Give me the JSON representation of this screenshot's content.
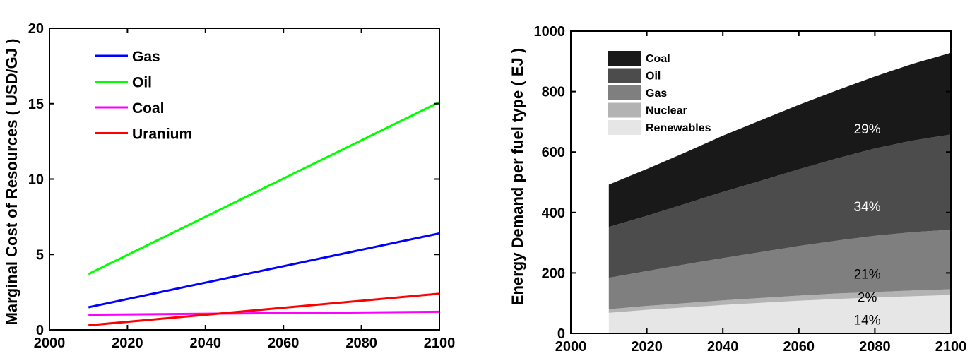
{
  "chart_data": [
    {
      "type": "line",
      "title": "",
      "xlabel": "",
      "ylabel": "Marginal Cost of Resources ( USD/GJ )",
      "xlim": [
        2000,
        2100
      ],
      "ylim": [
        0,
        20
      ],
      "xticks": [
        "2000",
        "2020",
        "2040",
        "2060",
        "2080",
        "2100"
      ],
      "yticks": [
        "0",
        "5",
        "10",
        "15",
        "20"
      ],
      "grid": false,
      "legend_position": "top-left",
      "x": [
        2010,
        2100
      ],
      "series": [
        {
          "name": "Gas",
          "color": "#0000ff",
          "values": [
            1.5,
            6.4
          ]
        },
        {
          "name": "Oil",
          "color": "#00ff00",
          "values": [
            3.7,
            15.1
          ]
        },
        {
          "name": "Coal",
          "color": "#ff00ff",
          "values": [
            1.0,
            1.2
          ]
        },
        {
          "name": "Uranium",
          "color": "#ff0000",
          "values": [
            0.3,
            2.4
          ]
        }
      ]
    },
    {
      "type": "area",
      "stacked": true,
      "title": "",
      "xlabel": "",
      "ylabel": "Energy Demand per fuel type ( EJ )",
      "xlim": [
        2000,
        2100
      ],
      "ylim": [
        0,
        1000
      ],
      "xticks": [
        "2000",
        "2020",
        "2040",
        "2060",
        "2080",
        "2100"
      ],
      "yticks": [
        "0",
        "200",
        "400",
        "600",
        "800",
        "1000"
      ],
      "grid": false,
      "legend_position": "top-left",
      "x": [
        2010,
        2020,
        2030,
        2040,
        2050,
        2060,
        2070,
        2080,
        2090,
        2100
      ],
      "series": [
        {
          "name": "Renewables",
          "color": "#e6e6e6",
          "values": [
            68,
            78,
            86,
            94,
            101,
            108,
            114,
            119,
            123,
            127
          ]
        },
        {
          "name": "Nuclear",
          "color": "#b3b3b3",
          "values": [
            12,
            13,
            14,
            15,
            16,
            17,
            18,
            18,
            19,
            19
          ]
        },
        {
          "name": "Gas",
          "color": "#7f7f7f",
          "values": [
            104,
            115,
            128,
            140,
            152,
            164,
            175,
            186,
            193,
            197
          ]
        },
        {
          "name": "Oil",
          "color": "#4c4c4c",
          "values": [
            168,
            183,
            200,
            219,
            236,
            254,
            272,
            289,
            303,
            315
          ]
        },
        {
          "name": "Coal",
          "color": "#191919",
          "values": [
            140,
            155,
            170,
            186,
            200,
            213,
            225,
            238,
            254,
            270
          ]
        }
      ],
      "annotations": [
        {
          "text": "14%",
          "x": 2078,
          "y": 45,
          "color": "#000000"
        },
        {
          "text": "2%",
          "x": 2078,
          "y": 120,
          "color": "#000000"
        },
        {
          "text": "21%",
          "x": 2078,
          "y": 198,
          "color": "#000000"
        },
        {
          "text": "34%",
          "x": 2078,
          "y": 420,
          "color": "#ffffff"
        },
        {
          "text": "29%",
          "x": 2078,
          "y": 678,
          "color": "#ffffff"
        }
      ]
    }
  ]
}
